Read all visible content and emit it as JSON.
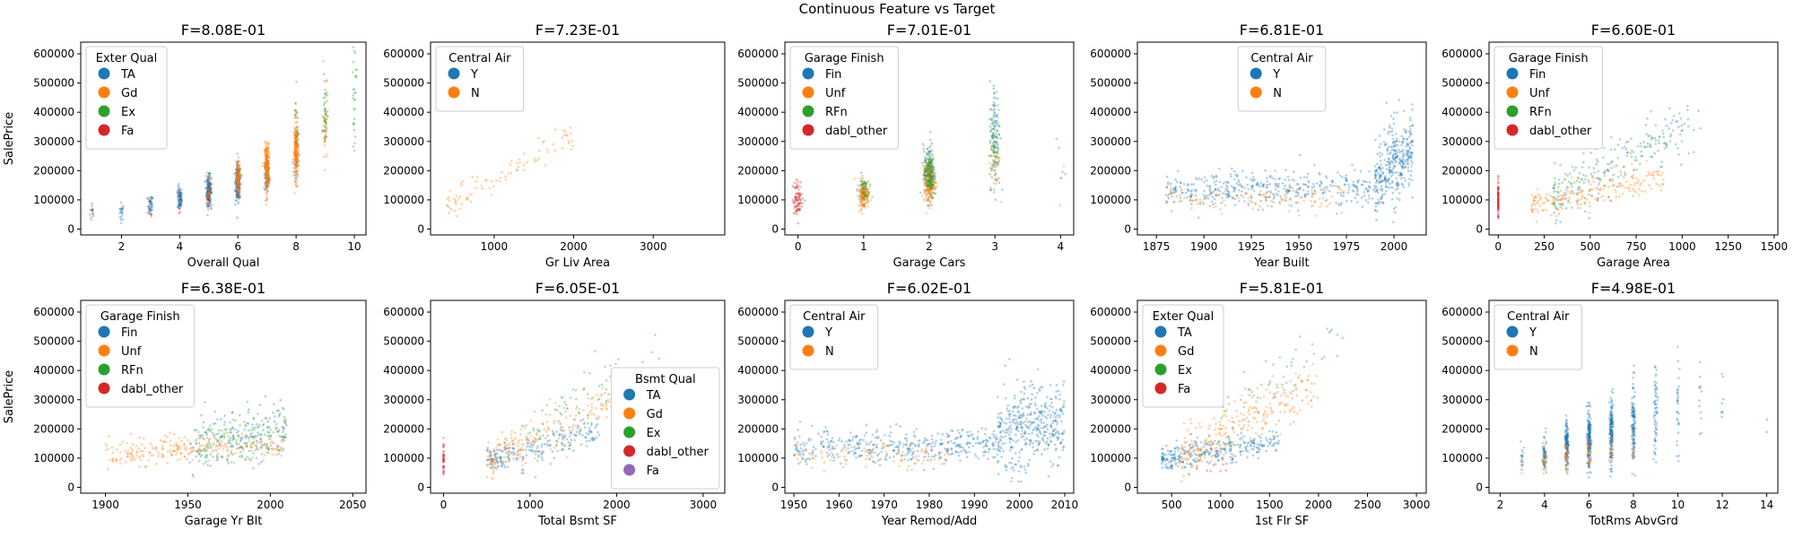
{
  "figure_title": "Continuous Feature vs Target",
  "colors": {
    "TA": "#1f77b4",
    "Gd": "#ff7f0e",
    "Ex": "#2ca02c",
    "Fa": "#d62728",
    "dabl_other": "#d62728",
    "Fin": "#1f77b4",
    "Unf": "#ff7f0e",
    "RFn": "#2ca02c",
    "Y": "#1f77b4",
    "N": "#ff7f0e",
    "Fa_bsmt": "#9467bd"
  },
  "chart_data": [
    {
      "type": "scatter",
      "title": "F=8.08E-01",
      "xlabel": "Overall Qual",
      "ylabel": "SalePrice",
      "xlim": [
        0.6,
        10.4
      ],
      "ylim": [
        -20000,
        640000
      ],
      "xticks": [
        2,
        4,
        6,
        8,
        10
      ],
      "yticks": [
        0,
        100000,
        200000,
        300000,
        400000,
        500000,
        600000
      ],
      "legend": {
        "title": "Exter Qual",
        "position": "upper-left",
        "entries": [
          "TA",
          "Gd",
          "Ex",
          "Fa"
        ]
      },
      "series": [
        {
          "name": "TA",
          "clusters": [
            [
              1,
              10,
              60000,
              20000
            ],
            [
              2,
              20,
              60000,
              15000
            ],
            [
              3,
              40,
              80000,
              18000
            ],
            [
              4,
              80,
              105000,
              20000
            ],
            [
              5,
              200,
              133000,
              25000
            ],
            [
              6,
              220,
              160000,
              30000
            ],
            [
              7,
              100,
              185000,
              30000
            ],
            [
              8,
              30,
              220000,
              40000
            ]
          ]
        },
        {
          "name": "Gd",
          "clusters": [
            [
              5,
              30,
              150000,
              30000
            ],
            [
              6,
              100,
              175000,
              30000
            ],
            [
              7,
              250,
              210000,
              40000
            ],
            [
              8,
              200,
              270000,
              50000
            ],
            [
              9,
              40,
              330000,
              60000
            ]
          ]
        },
        {
          "name": "Ex",
          "clusters": [
            [
              8,
              20,
              350000,
              60000
            ],
            [
              9,
              40,
              400000,
              70000
            ],
            [
              10,
              30,
              470000,
              90000
            ]
          ]
        },
        {
          "name": "Fa",
          "clusters": [
            [
              1,
              5,
              50000,
              15000
            ],
            [
              3,
              8,
              80000,
              20000
            ],
            [
              4,
              10,
              90000,
              25000
            ],
            [
              5,
              10,
              110000,
              20000
            ],
            [
              6,
              5,
              130000,
              20000
            ]
          ]
        }
      ]
    },
    {
      "type": "scatter",
      "title": "F=7.23E-01",
      "xlabel": "Gr Liv Area",
      "ylabel": "",
      "xlim": [
        200,
        3900
      ],
      "ylim": [
        -20000,
        640000
      ],
      "xticks": [
        1000,
        2000,
        3000
      ],
      "yticks": [
        0,
        100000,
        200000,
        300000,
        400000,
        500000,
        600000
      ],
      "legend": {
        "title": "Central Air",
        "position": "upper-left",
        "entries": [
          "Y",
          "N"
        ]
      },
      "series": [
        {
          "name": "Y",
          "linear": [
            [
              700,
              3400
            ],
            110,
            -20000,
            1200,
            40000
          ]
        },
        {
          "name": "N",
          "linear": [
            [
              400,
              2000
            ],
            90,
            20000,
            150,
            25000
          ]
        }
      ]
    },
    {
      "type": "scatter",
      "title": "F=7.01E-01",
      "xlabel": "Garage Cars",
      "ylabel": "",
      "xlim": [
        -0.2,
        4.2
      ],
      "ylim": [
        -20000,
        640000
      ],
      "xticks": [
        0,
        1,
        2,
        3,
        4
      ],
      "yticks": [
        0,
        100000,
        200000,
        300000,
        400000,
        500000,
        600000
      ],
      "legend": {
        "title": "Garage Finish",
        "position": "upper-left",
        "entries": [
          "Fin",
          "Unf",
          "RFn",
          "dabl_other"
        ]
      },
      "series": [
        {
          "name": "Fin",
          "clusters": [
            [
              1,
              20,
              140000,
              25000
            ],
            [
              2,
              100,
              200000,
              50000
            ],
            [
              3,
              80,
              330000,
              90000
            ],
            [
              4,
              5,
              230000,
              60000
            ]
          ]
        },
        {
          "name": "Unf",
          "clusters": [
            [
              1,
              150,
              120000,
              25000
            ],
            [
              2,
              200,
              160000,
              35000
            ],
            [
              3,
              30,
              220000,
              50000
            ],
            [
              4,
              3,
              200000,
              40000
            ]
          ]
        },
        {
          "name": "RFn",
          "clusters": [
            [
              1,
              40,
              135000,
              25000
            ],
            [
              2,
              150,
              190000,
              40000
            ],
            [
              3,
              70,
              290000,
              80000
            ]
          ]
        },
        {
          "name": "dabl_other",
          "clusters": [
            [
              0,
              80,
              105000,
              30000
            ]
          ]
        }
      ]
    },
    {
      "type": "scatter",
      "title": "F=6.81E-01",
      "xlabel": "Year Built",
      "ylabel": "",
      "xlim": [
        1865,
        2017
      ],
      "ylim": [
        -20000,
        640000
      ],
      "xticks": [
        1875,
        1900,
        1925,
        1950,
        1975,
        2000
      ],
      "yticks": [
        0,
        100000,
        200000,
        300000,
        400000,
        500000,
        600000
      ],
      "legend": {
        "title": "Central Air",
        "position": "upper-center",
        "entries": [
          "Y",
          "N"
        ]
      },
      "series": [
        {
          "name": "Y",
          "range_x": [
            [
              1880,
              1990
            ],
            400,
            130000,
            150,
            30000
          ],
          "range_x2": [
            [
              1990,
              2010
            ],
            350,
            170000,
            5000,
            70000
          ]
        },
        {
          "name": "N",
          "range_x": [
            [
              1880,
              1975
            ],
            120,
            105000,
            0,
            25000
          ]
        }
      ]
    },
    {
      "type": "scatter",
      "title": "F=6.60E-01",
      "xlabel": "Garage Area",
      "ylabel": "",
      "xlim": [
        -50,
        1520
      ],
      "ylim": [
        -20000,
        640000
      ],
      "xticks": [
        0,
        250,
        500,
        750,
        1000,
        1250,
        1500
      ],
      "yticks": [
        0,
        100000,
        200000,
        300000,
        400000,
        500000,
        600000
      ],
      "legend": {
        "title": "Garage Finish",
        "position": "upper-left",
        "entries": [
          "Fin",
          "Unf",
          "RFn",
          "dabl_other"
        ]
      },
      "series": [
        {
          "name": "Fin",
          "linear": [
            [
              300,
              1100
            ],
            120,
            0,
            350,
            50000
          ]
        },
        {
          "name": "Unf",
          "linear": [
            [
              180,
              900
            ],
            200,
            60000,
            130,
            25000
          ]
        },
        {
          "name": "RFn",
          "linear": [
            [
              300,
              1000
            ],
            120,
            30000,
            300,
            40000
          ]
        },
        {
          "name": "dabl_other",
          "clusters": [
            [
              0,
              80,
              105000,
              30000
            ]
          ]
        }
      ]
    },
    {
      "type": "scatter",
      "title": "F=6.38E-01",
      "xlabel": "Garage Yr Blt",
      "ylabel": "SalePrice",
      "xlim": [
        1885,
        2058
      ],
      "ylim": [
        -20000,
        640000
      ],
      "xticks": [
        1900,
        1950,
        2000,
        2050
      ],
      "yticks": [
        0,
        100000,
        200000,
        300000,
        400000,
        500000,
        600000
      ],
      "legend": {
        "title": "Garage Finish",
        "position": "upper-left",
        "entries": [
          "Fin",
          "Unf",
          "RFn",
          "dabl_other"
        ]
      },
      "series": [
        {
          "name": "Fin",
          "range_x": [
            [
              1950,
              2010
            ],
            150,
            150000,
            800,
            50000
          ]
        },
        {
          "name": "Unf",
          "range_x": [
            [
              1900,
              2008
            ],
            250,
            120000,
            200,
            25000
          ]
        },
        {
          "name": "RFn",
          "range_x": [
            [
              1955,
              2010
            ],
            150,
            150000,
            700,
            40000
          ]
        }
      ]
    },
    {
      "type": "scatter",
      "title": "F=6.05E-01",
      "xlabel": "Total Bsmt SF",
      "ylabel": "",
      "xlim": [
        -150,
        3250
      ],
      "ylim": [
        -20000,
        640000
      ],
      "xticks": [
        0,
        1000,
        2000,
        3000
      ],
      "yticks": [
        0,
        100000,
        200000,
        300000,
        400000,
        500000,
        600000
      ],
      "legend": {
        "title": "Bsmt Qual",
        "position": "lower-right",
        "entries": [
          "TA",
          "Gd",
          "Ex",
          "dabl_other",
          "Fa_bsmt"
        ],
        "labels": [
          "TA",
          "Gd",
          "Ex",
          "dabl_other",
          "Fa"
        ]
      },
      "series": [
        {
          "name": "TA",
          "linear": [
            [
              500,
              1800
            ],
            200,
            50000,
            80,
            25000
          ]
        },
        {
          "name": "Gd",
          "linear": [
            [
              500,
              2000
            ],
            200,
            20000,
            140,
            35000
          ]
        },
        {
          "name": "Ex",
          "linear": [
            [
              900,
              2500
            ],
            80,
            0,
            180,
            60000
          ]
        },
        {
          "name": "dabl_other",
          "clusters": [
            [
              0,
              40,
              105000,
              30000
            ]
          ]
        },
        {
          "name": "Fa_bsmt",
          "linear": [
            [
              500,
              1300
            ],
            10,
            60000,
            50,
            20000
          ]
        }
      ]
    },
    {
      "type": "scatter",
      "title": "F=6.02E-01",
      "xlabel": "Year Remod/Add",
      "ylabel": "",
      "xlim": [
        1948,
        2012
      ],
      "ylim": [
        -20000,
        640000
      ],
      "xticks": [
        1950,
        1960,
        1970,
        1980,
        1990,
        2000,
        2010
      ],
      "yticks": [
        0,
        100000,
        200000,
        300000,
        400000,
        500000,
        600000
      ],
      "legend": {
        "title": "Central Air",
        "position": "upper-left",
        "entries": [
          "Y",
          "N"
        ]
      },
      "series": [
        {
          "name": "Y",
          "range_x": [
            [
              1950,
              1995
            ],
            400,
            135000,
            300,
            30000
          ],
          "range_x2": [
            [
              1995,
              2010
            ],
            400,
            180000,
            3000,
            70000
          ]
        },
        {
          "name": "N",
          "range_x": [
            [
              1950,
              1985
            ],
            100,
            110000,
            0,
            25000
          ]
        }
      ]
    },
    {
      "type": "scatter",
      "title": "F=5.81E-01",
      "xlabel": "1st Flr SF",
      "ylabel": "",
      "xlim": [
        150,
        3100
      ],
      "ylim": [
        -20000,
        640000
      ],
      "xticks": [
        500,
        1000,
        1500,
        2000,
        2500,
        3000
      ],
      "yticks": [
        0,
        100000,
        200000,
        300000,
        400000,
        500000,
        600000
      ],
      "legend": {
        "title": "Exter Qual",
        "position": "upper-left",
        "entries": [
          "TA",
          "Gd",
          "Ex",
          "Fa"
        ]
      },
      "series": [
        {
          "name": "TA",
          "linear": [
            [
              400,
              1600
            ],
            300,
            70000,
            60,
            22000
          ]
        },
        {
          "name": "Gd",
          "linear": [
            [
              600,
              2000
            ],
            250,
            0,
            180,
            40000
          ]
        },
        {
          "name": "Ex",
          "linear": [
            [
              1000,
              2300
            ],
            60,
            -50000,
            250,
            60000
          ]
        },
        {
          "name": "Fa",
          "linear": [
            [
              500,
              1200
            ],
            15,
            60000,
            30,
            20000
          ]
        }
      ]
    },
    {
      "type": "scatter",
      "title": "F=4.98E-01",
      "xlabel": "TotRms AbvGrd",
      "ylabel": "",
      "xlim": [
        1.5,
        14.5
      ],
      "ylim": [
        -20000,
        640000
      ],
      "xticks": [
        2,
        4,
        6,
        8,
        10,
        12,
        14
      ],
      "yticks": [
        0,
        100000,
        200000,
        300000,
        400000,
        500000,
        600000
      ],
      "legend": {
        "title": "Central Air",
        "position": "upper-left",
        "entries": [
          "Y",
          "N"
        ]
      },
      "series": [
        {
          "name": "Y",
          "clusters": [
            [
              3,
              15,
              100000,
              25000
            ],
            [
              4,
              60,
              120000,
              30000
            ],
            [
              5,
              150,
              140000,
              35000
            ],
            [
              6,
              200,
              165000,
              45000
            ],
            [
              7,
              180,
              190000,
              60000
            ],
            [
              8,
              120,
              220000,
              70000
            ],
            [
              9,
              60,
              260000,
              80000
            ],
            [
              10,
              30,
              280000,
              90000
            ],
            [
              11,
              12,
              300000,
              90000
            ],
            [
              12,
              8,
              250000,
              60000
            ],
            [
              14,
              2,
              200000,
              30000
            ]
          ]
        },
        {
          "name": "N",
          "clusters": [
            [
              3,
              5,
              80000,
              20000
            ],
            [
              4,
              20,
              95000,
              25000
            ],
            [
              5,
              30,
              105000,
              25000
            ],
            [
              6,
              25,
              115000,
              25000
            ],
            [
              7,
              15,
              125000,
              25000
            ],
            [
              8,
              8,
              130000,
              30000
            ]
          ]
        }
      ]
    }
  ]
}
